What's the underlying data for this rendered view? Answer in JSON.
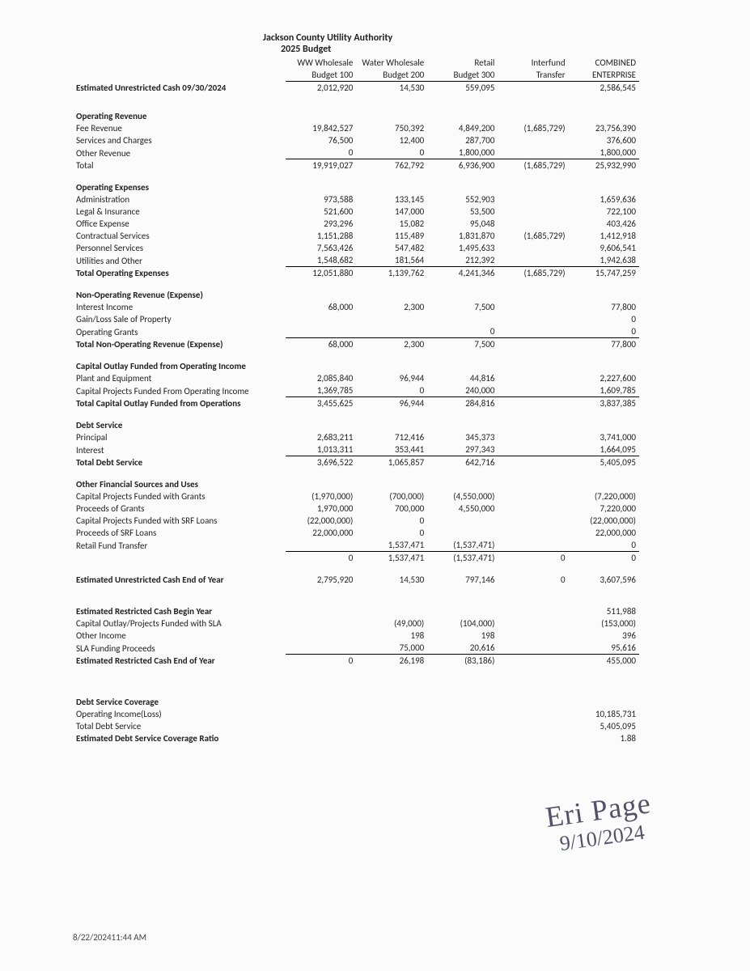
{
  "header": {
    "org": "Jackson County Utility Authority",
    "budget_year": "2025 Budget"
  },
  "columns": {
    "c1_top": "WW Wholesale",
    "c1_bot": "Budget 100",
    "c2_top": "Water Wholesale",
    "c2_bot": "Budget 200",
    "c3_top": "Retail",
    "c3_bot": "Budget 300",
    "c4_top": "Interfund",
    "c4_bot": "Transfer",
    "c5_top": "COMBINED",
    "c5_bot": "ENTERPRISE"
  },
  "sections": {
    "est_unrestricted_begin": {
      "label": "Estimated Unrestricted Cash 09/30/2024",
      "v": [
        "2,012,920",
        "14,530",
        "559,095",
        "",
        "2,586,545"
      ]
    },
    "op_rev_header": "Operating Revenue",
    "op_rev": [
      {
        "label": "Fee Revenue",
        "v": [
          "19,842,527",
          "750,392",
          "4,849,200",
          "(1,685,729)",
          "23,756,390"
        ]
      },
      {
        "label": "Services and Charges",
        "v": [
          "76,500",
          "12,400",
          "287,700",
          "",
          "376,600"
        ]
      },
      {
        "label": "Other Revenue",
        "v": [
          "0",
          "0",
          "1,800,000",
          "",
          "1,800,000"
        ]
      }
    ],
    "op_rev_total": {
      "label": "Total",
      "v": [
        "19,919,027",
        "762,792",
        "6,936,900",
        "(1,685,729)",
        "25,932,990"
      ]
    },
    "op_exp_header": "Operating Expenses",
    "op_exp": [
      {
        "label": "Administration",
        "v": [
          "973,588",
          "133,145",
          "552,903",
          "",
          "1,659,636"
        ]
      },
      {
        "label": "Legal & Insurance",
        "v": [
          "521,600",
          "147,000",
          "53,500",
          "",
          "722,100"
        ]
      },
      {
        "label": "Office Expense",
        "v": [
          "293,296",
          "15,082",
          "95,048",
          "",
          "403,426"
        ]
      },
      {
        "label": "Contractual Services",
        "v": [
          "1,151,288",
          "115,489",
          "1,831,870",
          "(1,685,729)",
          "1,412,918"
        ]
      },
      {
        "label": "Personnel Services",
        "v": [
          "7,563,426",
          "547,482",
          "1,495,633",
          "",
          "9,606,541"
        ]
      },
      {
        "label": "Utilities and Other",
        "v": [
          "1,548,682",
          "181,564",
          "212,392",
          "",
          "1,942,638"
        ]
      }
    ],
    "op_exp_total": {
      "label": "Total Operating Expenses",
      "v": [
        "12,051,880",
        "1,139,762",
        "4,241,346",
        "(1,685,729)",
        "15,747,259"
      ]
    },
    "nonop_header": "Non-Operating Revenue (Expense)",
    "nonop": [
      {
        "label": "Interest Income",
        "v": [
          "68,000",
          "2,300",
          "7,500",
          "",
          "77,800"
        ]
      },
      {
        "label": "Gain/Loss Sale of Property",
        "v": [
          "",
          "",
          "",
          "",
          "0"
        ]
      },
      {
        "label": "Operating Grants",
        "v": [
          "",
          "",
          "0",
          "",
          "0"
        ]
      }
    ],
    "nonop_total": {
      "label": "Total Non-Operating Revenue (Expense)",
      "v": [
        "68,000",
        "2,300",
        "7,500",
        "",
        "77,800"
      ]
    },
    "cap_header": "Capital Outlay Funded from Operating Income",
    "cap": [
      {
        "label": "Plant and Equipment",
        "v": [
          "2,085,840",
          "96,944",
          "44,816",
          "",
          "2,227,600"
        ]
      },
      {
        "label": "Capital Projects Funded From Operating Income",
        "v": [
          "1,369,785",
          "0",
          "240,000",
          "",
          "1,609,785"
        ]
      }
    ],
    "cap_total": {
      "label": "Total Capital Outlay Funded from Operations",
      "v": [
        "3,455,625",
        "96,944",
        "284,816",
        "",
        "3,837,385"
      ]
    },
    "debt_header": "Debt Service",
    "debt": [
      {
        "label": "Principal",
        "v": [
          "2,683,211",
          "712,416",
          "345,373",
          "",
          "3,741,000"
        ]
      },
      {
        "label": "Interest",
        "v": [
          "1,013,311",
          "353,441",
          "297,343",
          "",
          "1,664,095"
        ]
      }
    ],
    "debt_total": {
      "label": "Total Debt Service",
      "v": [
        "3,696,522",
        "1,065,857",
        "642,716",
        "",
        "5,405,095"
      ]
    },
    "other_header": "Other Financial Sources and Uses",
    "other": [
      {
        "label": "Capital Projects Funded with Grants",
        "v": [
          "(1,970,000)",
          "(700,000)",
          "(4,550,000)",
          "",
          "(7,220,000)"
        ]
      },
      {
        "label": "Proceeds of Grants",
        "v": [
          "1,970,000",
          "700,000",
          "4,550,000",
          "",
          "7,220,000"
        ]
      },
      {
        "label": "Capital Projects Funded with SRF Loans",
        "v": [
          "(22,000,000)",
          "0",
          "",
          "",
          "(22,000,000)"
        ]
      },
      {
        "label": "Proceeds of SRF Loans",
        "v": [
          "22,000,000",
          "0",
          "",
          "",
          "22,000,000"
        ]
      },
      {
        "label": "Retail Fund Transfer",
        "v": [
          "",
          "1,537,471",
          "(1,537,471)",
          "",
          "0"
        ]
      }
    ],
    "other_total": {
      "label": "",
      "v": [
        "0",
        "1,537,471",
        "(1,537,471)",
        "0",
        "0"
      ]
    },
    "est_unrestricted_end": {
      "label": "Estimated Unrestricted Cash End of Year",
      "v": [
        "2,795,920",
        "14,530",
        "797,146",
        "0",
        "3,607,596"
      ]
    },
    "restr": [
      {
        "label": "Estimated Restricted Cash Begin Year",
        "v": [
          "",
          "",
          "",
          "",
          "511,988"
        ],
        "bold": true
      },
      {
        "label": "Capital Outlay/Projects Funded with SLA",
        "v": [
          "",
          "(49,000)",
          "(104,000)",
          "",
          "(153,000)"
        ]
      },
      {
        "label": "Other Income",
        "v": [
          "",
          "198",
          "198",
          "",
          "396"
        ]
      },
      {
        "label": "SLA Funding Proceeds",
        "v": [
          "",
          "75,000",
          "20,616",
          "",
          "95,616"
        ]
      }
    ],
    "restr_total": {
      "label": "Estimated Restricted Cash End of Year",
      "v": [
        "0",
        "26,198",
        "(83,186)",
        "",
        "455,000"
      ]
    },
    "dsc_header": "Debt Service Coverage",
    "dsc": [
      {
        "label": "Operating Income(Loss)",
        "v": [
          "",
          "",
          "",
          "",
          "10,185,731"
        ]
      },
      {
        "label": "Total Debt Service",
        "v": [
          "",
          "",
          "",
          "",
          "5,405,095"
        ]
      }
    ],
    "dsc_ratio": {
      "label": "Estimated Debt Service Coverage Ratio",
      "v": [
        "",
        "",
        "",
        "",
        "1.88"
      ]
    }
  },
  "signature": {
    "name": "Eri Page",
    "date": "9/10/2024"
  },
  "timestamp": "8/22/202411:44 AM"
}
